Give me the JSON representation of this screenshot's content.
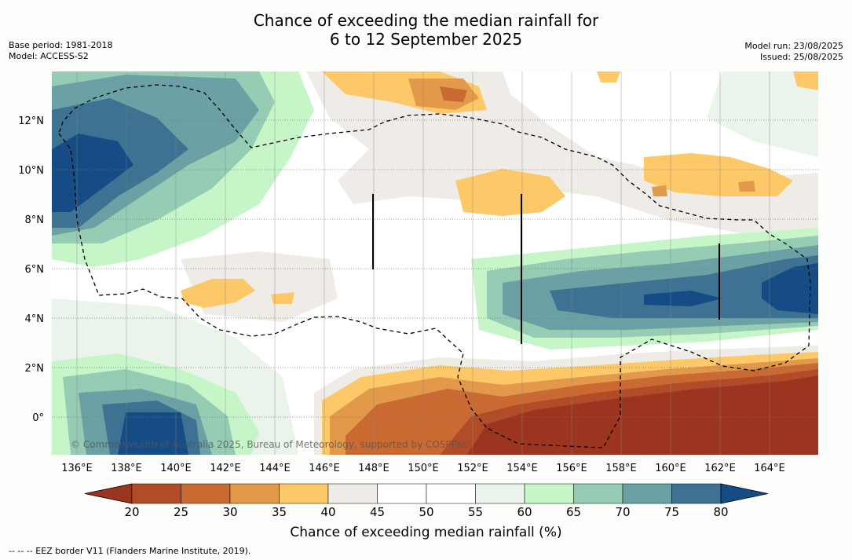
{
  "title": {
    "line1": "Chance of exceeding the median rainfall for",
    "line2": "6 to 12 September 2025"
  },
  "meta_left": {
    "base_period": "Base period: 1981-2018",
    "model": "Model: ACCESS-S2"
  },
  "meta_right": {
    "model_run": "Model run: 23/08/2025",
    "issued": "Issued: 25/08/2025"
  },
  "map": {
    "lon_labels": [
      "136°E",
      "138°E",
      "140°E",
      "142°E",
      "144°E",
      "146°E",
      "148°E",
      "150°E",
      "152°E",
      "154°E",
      "156°E",
      "158°E",
      "160°E",
      "162°E",
      "164°E"
    ],
    "lat_labels": [
      "12°N",
      "10°N",
      "8°N",
      "6°N",
      "4°N",
      "2°N",
      "0°"
    ],
    "copyright": "© Commonwealth of Australia 2025, Bureau of Meteorology, supported by COSPPac"
  },
  "colorbar": {
    "ticks": [
      "20",
      "25",
      "30",
      "35",
      "40",
      "45",
      "50",
      "55",
      "60",
      "65",
      "70",
      "75",
      "80"
    ],
    "colors": [
      "#9b3520",
      "#b24c28",
      "#ca6a33",
      "#e2994a",
      "#fdc868",
      "#efebe6",
      "#ffffff",
      "#ffffff",
      "#eaf4ea",
      "#c6f6c8",
      "#96cbb4",
      "#6ba1a4",
      "#3d7292",
      "#154c86"
    ],
    "title": "Chance of exceeding median rainfall (%)"
  },
  "footer": "--  --  -- EEZ border V11 (Flanders Marine Institute, 2019).",
  "palette": {
    "c20": "#9b3520",
    "c25": "#b24c28",
    "c30": "#ca6a33",
    "c35": "#e2994a",
    "c40": "#fdc868",
    "c45": "#efebe6",
    "c55": "#eaf4ea",
    "c60": "#c6f6c8",
    "c65": "#96cbb4",
    "c70": "#6ba1a4",
    "c75": "#3d7292",
    "c80": "#154c86"
  }
}
